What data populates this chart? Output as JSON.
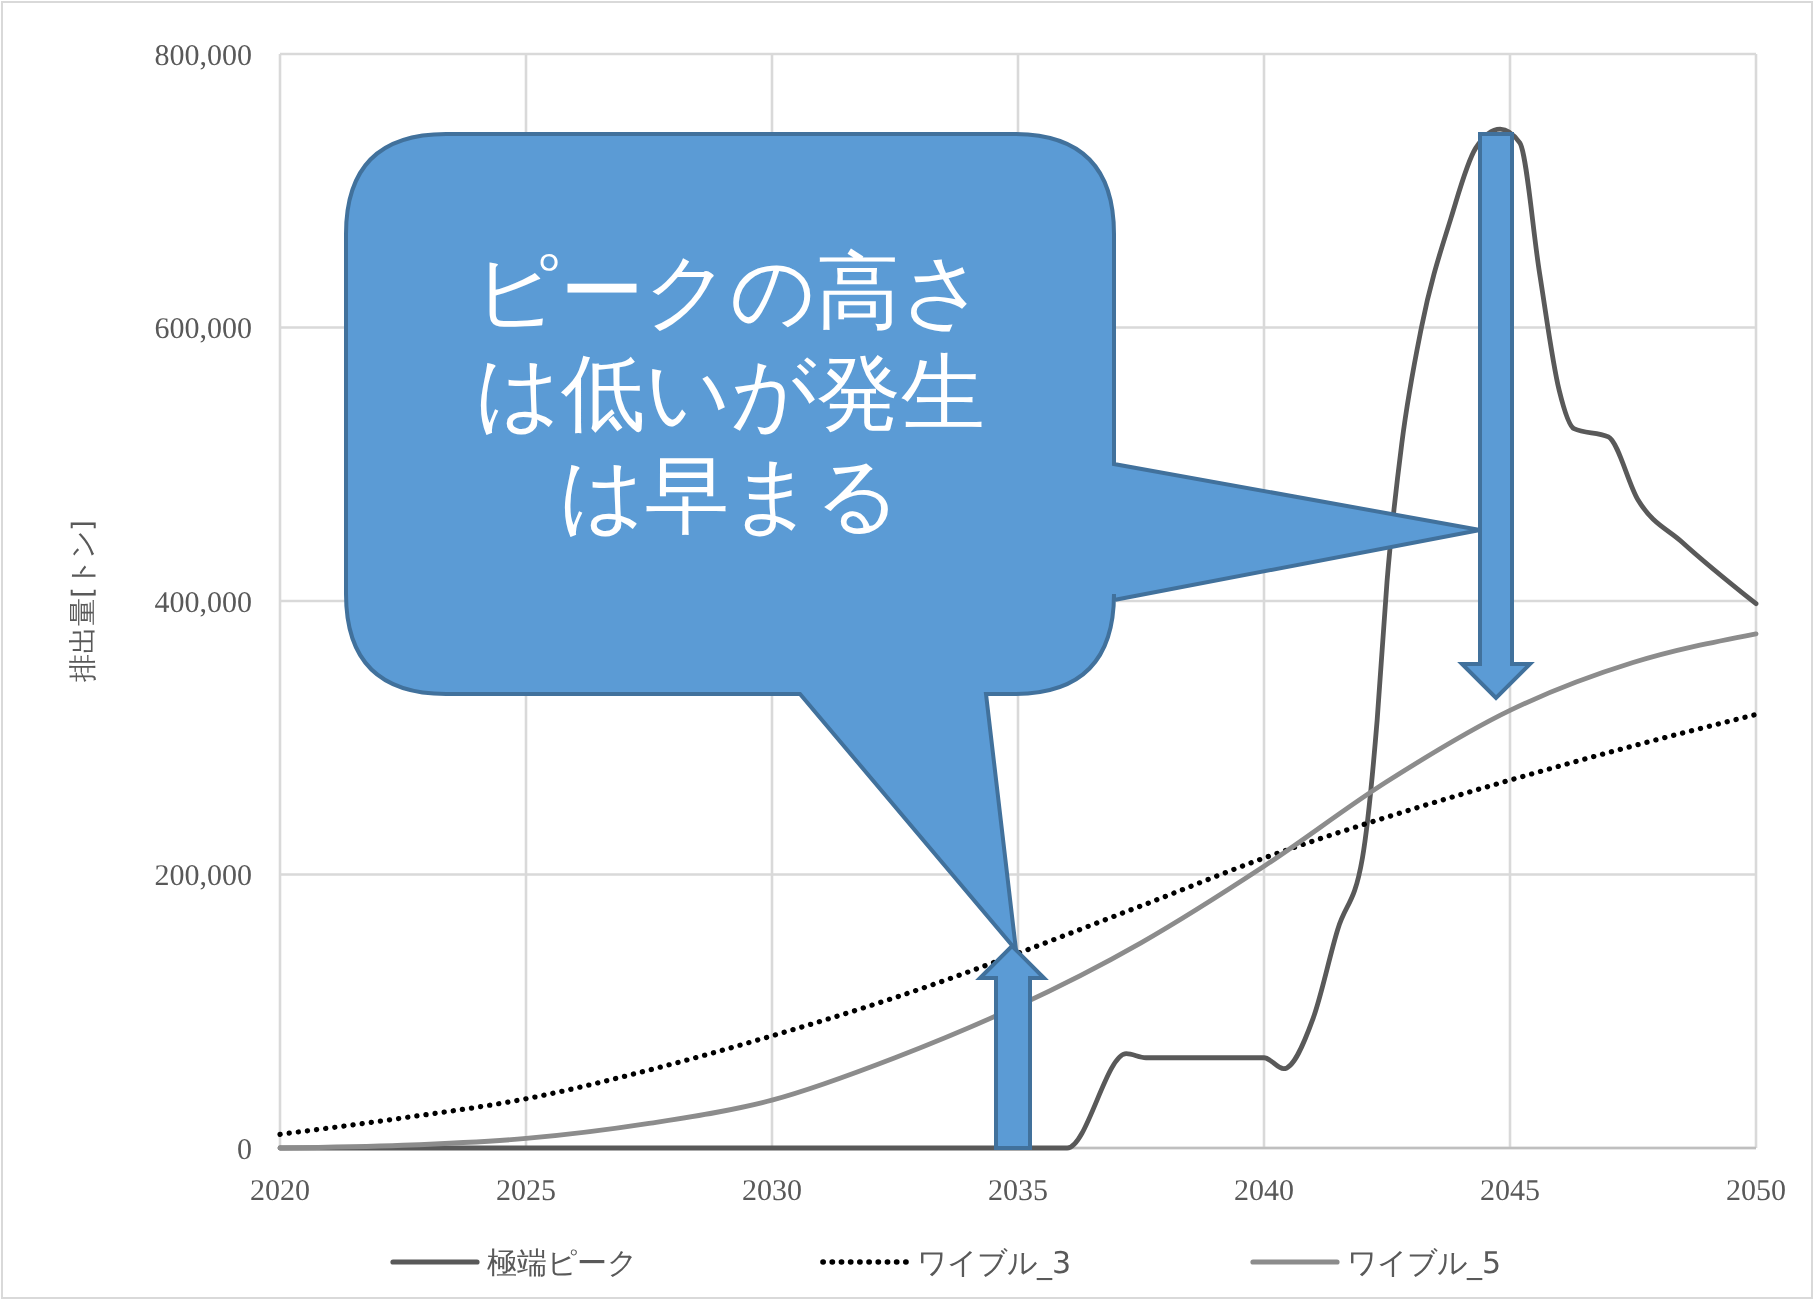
{
  "chart_data": {
    "type": "line",
    "ylabel": "排出量[トン]",
    "xlim": [
      2020,
      2050
    ],
    "xticks": [
      2020,
      2025,
      2030,
      2035,
      2040,
      2045,
      2050
    ],
    "ylim": [
      0,
      800000
    ],
    "yticks": [
      {
        "value": 0,
        "label": "0"
      },
      {
        "value": 200000,
        "label": "200,000"
      },
      {
        "value": 400000,
        "label": "400,000"
      },
      {
        "value": 600000,
        "label": "600,000"
      },
      {
        "value": 800000,
        "label": "800,000"
      }
    ],
    "grid": true,
    "legend": "bottom",
    "marker": "none",
    "annotations": [
      "ピークの高さは低いが発生は早まる"
    ],
    "series": [
      {
        "name": "極端ピーク",
        "color": "#595959",
        "line_style": "solid",
        "x": [
          2020,
          2025,
          2030,
          2035,
          2036,
          2037.2,
          2037.6,
          2040,
          2040.4,
          2041,
          2041.5,
          2042,
          2042.3,
          2042.5,
          2042.8,
          2043.2,
          2043.8,
          2044.3,
          2044.8,
          2045.2,
          2045.6,
          2046,
          2046.3,
          2047,
          2047.6,
          2048.5,
          2050
        ],
        "values": [
          0,
          0,
          0,
          0,
          0,
          69000,
          66000,
          66000,
          58000,
          95000,
          160000,
          212000,
          313000,
          414000,
          515000,
          600000,
          680000,
          731000,
          745000,
          735000,
          640000,
          554000,
          526000,
          520000,
          474000,
          443000,
          398000
        ]
      },
      {
        "name": "ワイブル_3",
        "color": "#000000",
        "line_style": "dotted",
        "x": [
          2020,
          2022.5,
          2025,
          2027.5,
          2030,
          2032.5,
          2037.5,
          2040,
          2042.5,
          2045,
          2047.5,
          2050
        ],
        "values": [
          10000,
          22000,
          36000,
          57000,
          82000,
          110000,
          177000,
          212000,
          242000,
          269000,
          294000,
          317000
        ]
      },
      {
        "name": "ワイブル_5",
        "color": "#8c8c8c",
        "line_style": "solid",
        "x": [
          2020,
          2022.5,
          2025,
          2027.5,
          2030,
          2032.5,
          2037.5,
          2040,
          2042.5,
          2045,
          2047.5,
          2050
        ],
        "values": [
          0,
          2000,
          7000,
          18000,
          35000,
          66000,
          150000,
          206000,
          268000,
          320000,
          355000,
          376000
        ]
      }
    ]
  }
}
